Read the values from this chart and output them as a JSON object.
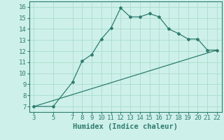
{
  "xlabel": "Humidex (Indice chaleur)",
  "curve_x": [
    3,
    5,
    7,
    8,
    9,
    10,
    11,
    12,
    13,
    14,
    15,
    16,
    17,
    18,
    19,
    20,
    21,
    22
  ],
  "curve_y": [
    7.0,
    7.0,
    9.2,
    11.1,
    11.7,
    13.1,
    14.1,
    15.9,
    15.1,
    15.1,
    15.4,
    15.1,
    14.0,
    13.6,
    13.1,
    13.1,
    12.1,
    12.1
  ],
  "line_x": [
    3,
    22
  ],
  "line_y": [
    7.0,
    12.1
  ],
  "color": "#2e7d6e",
  "bg_color": "#cef0ea",
  "grid_color": "#aaddcc",
  "ylim": [
    6.5,
    16.5
  ],
  "xlim": [
    2.5,
    22.5
  ],
  "yticks": [
    7,
    8,
    9,
    10,
    11,
    12,
    13,
    14,
    15,
    16
  ],
  "xticks": [
    3,
    5,
    7,
    8,
    9,
    10,
    11,
    12,
    13,
    14,
    15,
    16,
    17,
    18,
    19,
    20,
    21,
    22
  ],
  "xlabel_fontsize": 7.5,
  "tick_fontsize": 6.5
}
